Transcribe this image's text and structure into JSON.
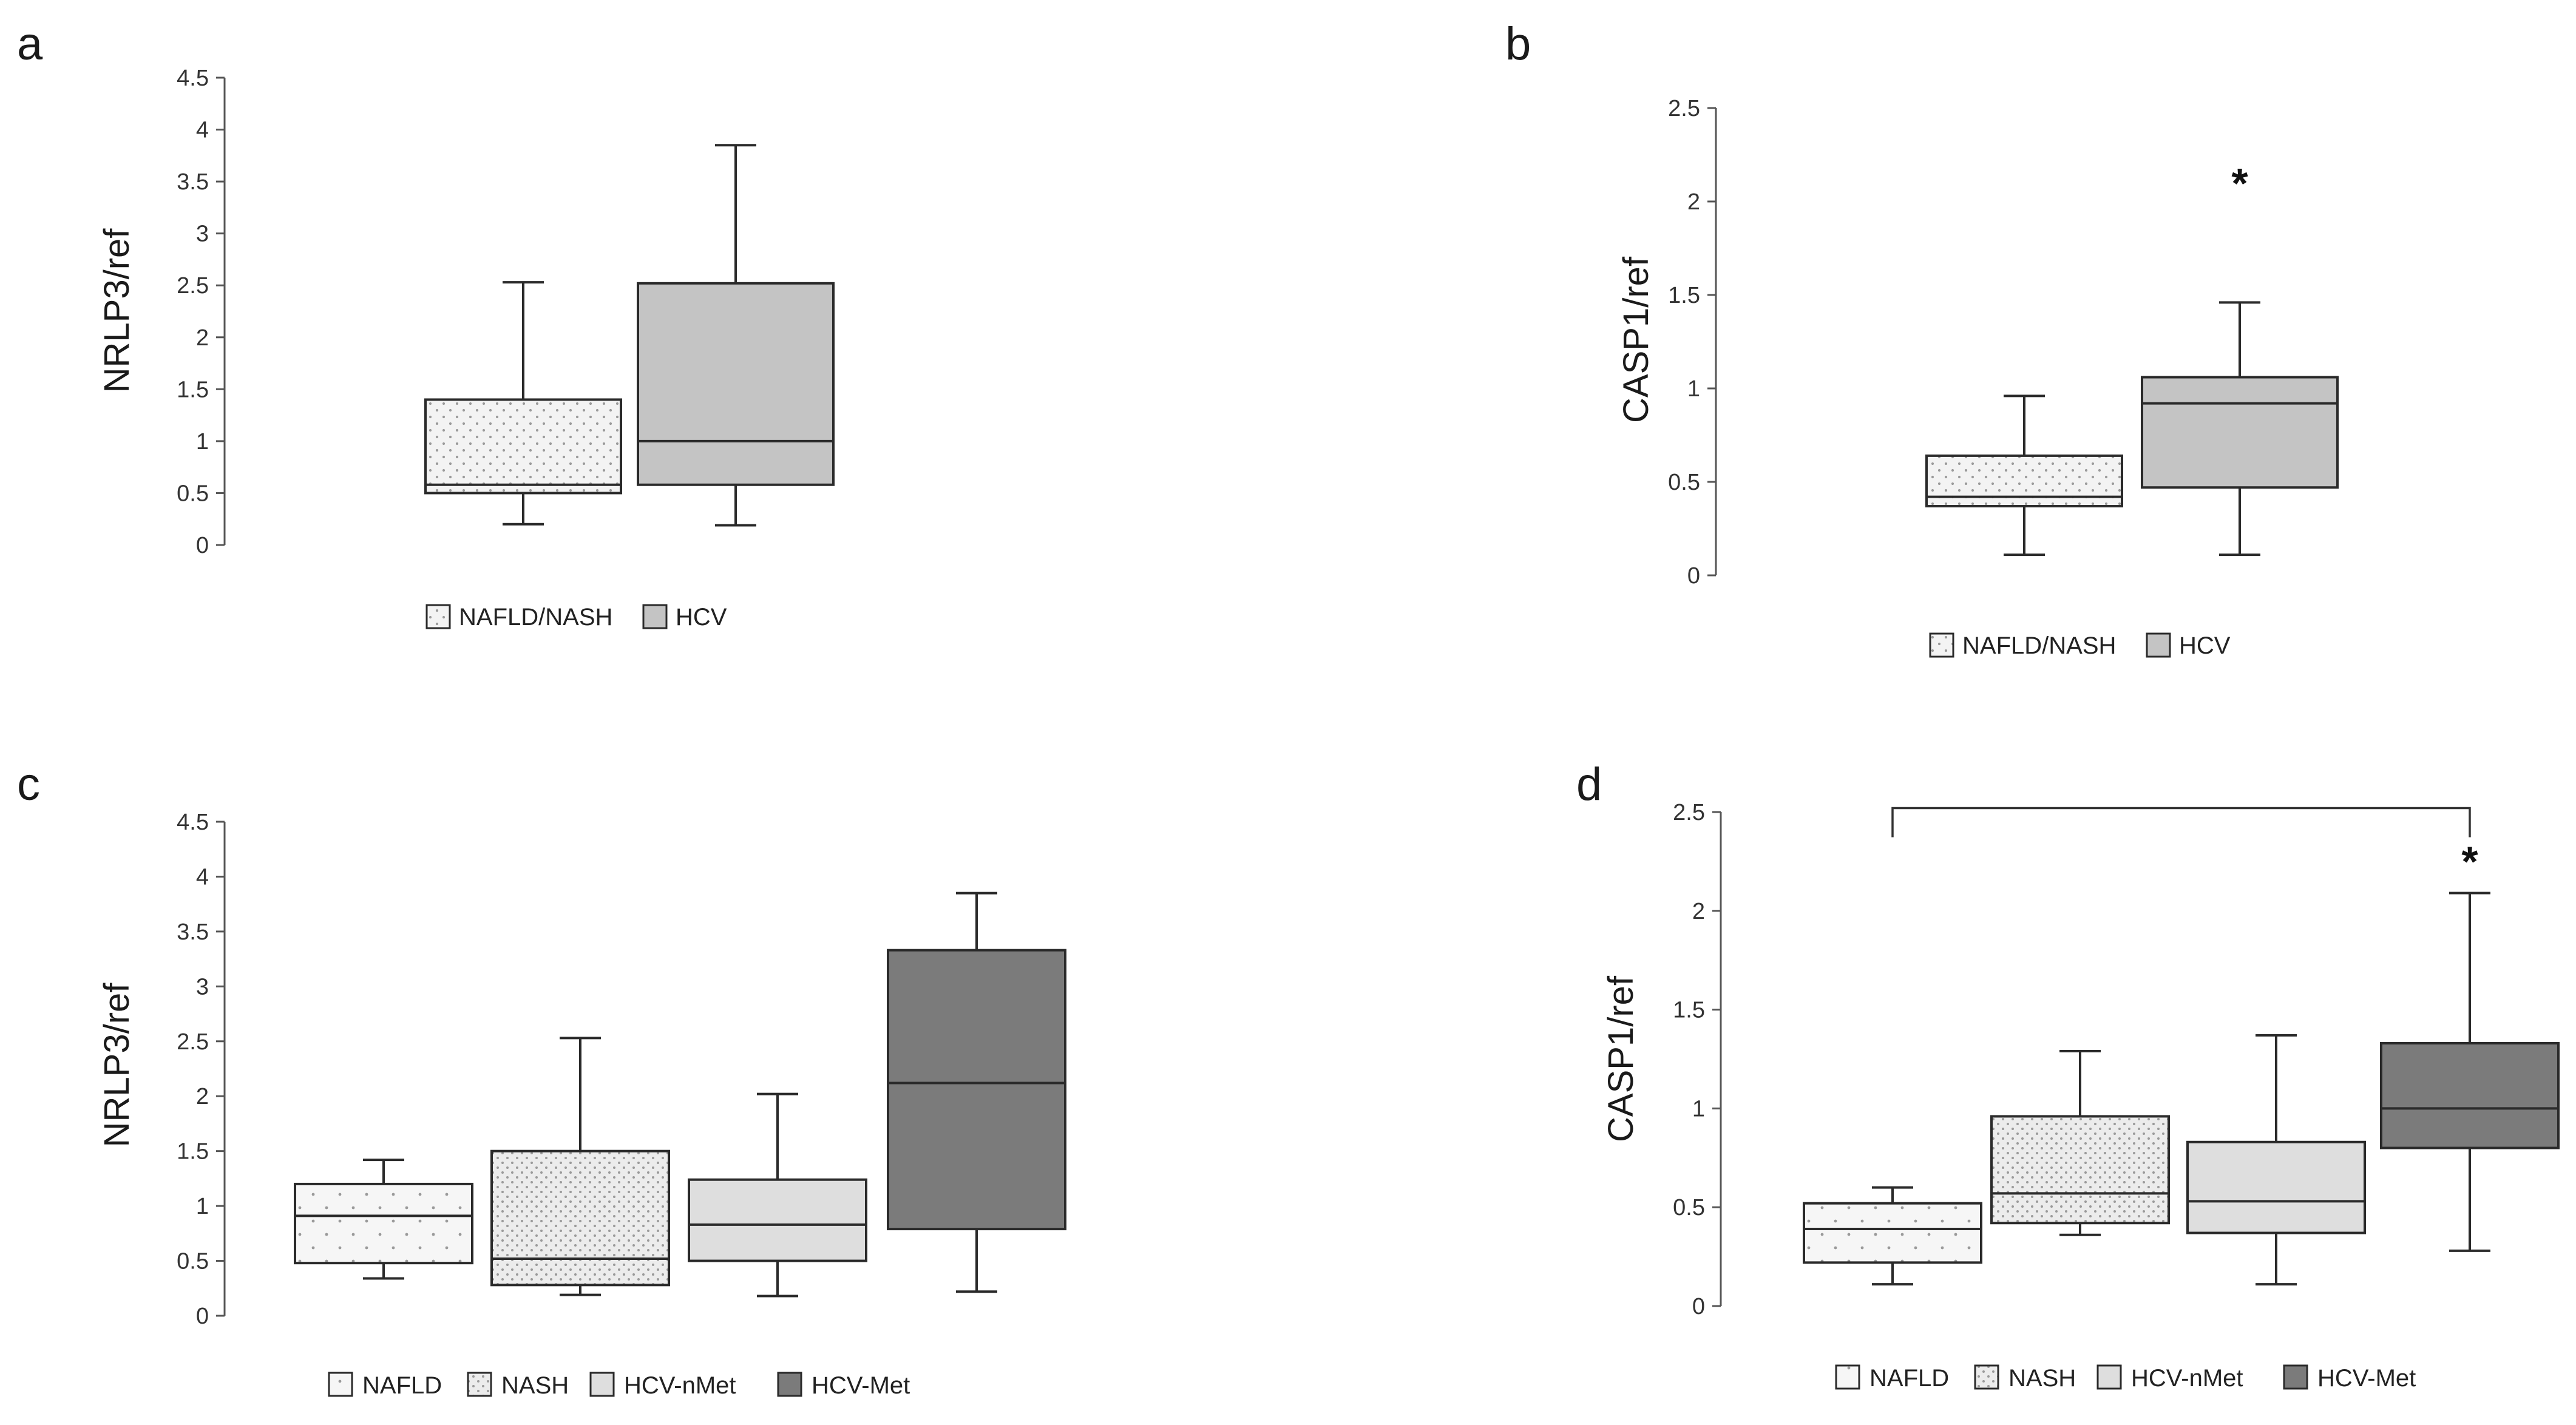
{
  "chart_data": [
    {
      "panel": "a",
      "type": "boxplot",
      "ylabel": "NRLP3/ref",
      "ylim": [
        0,
        4.5
      ],
      "yticks": [
        "0",
        "0.5",
        "1",
        "1.5",
        "2",
        "2.5",
        "3",
        "3.5",
        "4",
        "4.5"
      ],
      "groups": [
        {
          "name": "NAFLD/NASH",
          "fill": "dots-light",
          "whisker_low": 0.2,
          "q1": 0.5,
          "median": 0.58,
          "q3": 1.4,
          "whisker_high": 2.53
        },
        {
          "name": "HCV",
          "fill": "solid-gray",
          "whisker_low": 0.19,
          "q1": 0.58,
          "median": 1.0,
          "q3": 2.52,
          "whisker_high": 3.85
        }
      ],
      "significance": []
    },
    {
      "panel": "b",
      "type": "boxplot",
      "ylabel": "CASP1/ref",
      "ylim": [
        0,
        2.5
      ],
      "yticks": [
        "0",
        "0.5",
        "1",
        "1.5",
        "2",
        "2.5"
      ],
      "groups": [
        {
          "name": "NAFLD/NASH",
          "fill": "dots-light",
          "whisker_low": 0.11,
          "q1": 0.37,
          "median": 0.42,
          "q3": 0.64,
          "whisker_high": 0.96
        },
        {
          "name": "HCV",
          "fill": "solid-gray",
          "whisker_low": 0.11,
          "q1": 0.47,
          "median": 0.92,
          "q3": 1.06,
          "whisker_high": 1.46
        }
      ],
      "significance": [
        {
          "label": "*",
          "group": 1,
          "value": 2.13
        }
      ]
    },
    {
      "panel": "c",
      "type": "boxplot",
      "ylabel": "NRLP3/ref",
      "ylim": [
        0,
        4.5
      ],
      "yticks": [
        "0",
        "0.5",
        "1",
        "1.5",
        "2",
        "2.5",
        "3",
        "3.5",
        "4",
        "4.5"
      ],
      "groups": [
        {
          "name": "NAFLD",
          "fill": "dots-sparse",
          "whisker_low": 0.34,
          "q1": 0.48,
          "median": 0.91,
          "q3": 1.2,
          "whisker_high": 1.42
        },
        {
          "name": "NASH",
          "fill": "dots-dense",
          "whisker_low": 0.19,
          "q1": 0.28,
          "median": 0.52,
          "q3": 1.5,
          "whisker_high": 2.53
        },
        {
          "name": "HCV-nMet",
          "fill": "solid-light",
          "whisker_low": 0.18,
          "q1": 0.5,
          "median": 0.83,
          "q3": 1.24,
          "whisker_high": 2.02
        },
        {
          "name": "HCV-Met",
          "fill": "solid-dark",
          "whisker_low": 0.22,
          "q1": 0.79,
          "median": 2.12,
          "q3": 3.33,
          "whisker_high": 3.85
        }
      ],
      "significance": []
    },
    {
      "panel": "d",
      "type": "boxplot",
      "ylabel": "CASP1/ref",
      "ylim": [
        0,
        2.5
      ],
      "yticks": [
        "0",
        "0.5",
        "1",
        "1.5",
        "2",
        "2.5"
      ],
      "groups": [
        {
          "name": "NAFLD",
          "fill": "dots-sparse",
          "whisker_low": 0.11,
          "q1": 0.22,
          "median": 0.39,
          "q3": 0.52,
          "whisker_high": 0.6
        },
        {
          "name": "NASH",
          "fill": "dots-dense",
          "whisker_low": 0.36,
          "q1": 0.42,
          "median": 0.57,
          "q3": 0.96,
          "whisker_high": 1.29
        },
        {
          "name": "HCV-nMet",
          "fill": "solid-light",
          "whisker_low": 0.11,
          "q1": 0.37,
          "median": 0.53,
          "q3": 0.83,
          "whisker_high": 1.37
        },
        {
          "name": "HCV-Met",
          "fill": "solid-dark",
          "whisker_low": 0.28,
          "q1": 0.8,
          "median": 1.0,
          "q3": 1.33,
          "whisker_high": 2.09
        }
      ],
      "significance": [
        {
          "label": "*",
          "group": 3,
          "value": 2.28
        }
      ],
      "brackets": [
        {
          "from_group": 0,
          "to_group": 3,
          "value": 2.52
        }
      ]
    }
  ],
  "colors": {
    "dots-light": "#f3f3f3",
    "dots-sparse": "#f6f6f6",
    "dots-dense": "#ececec",
    "solid-light": "#dedede",
    "solid-gray": "#c4c4c4",
    "solid-dark": "#7b7b7b",
    "dot": "#9a9a9a",
    "stroke": "#2a2a2a",
    "axis": "#555555"
  }
}
